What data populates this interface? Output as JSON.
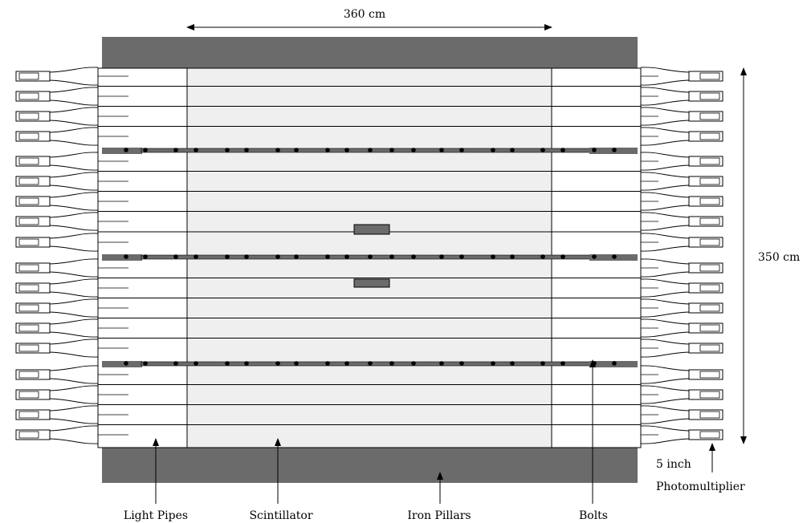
{
  "labels": {
    "width_dim": "360 cm",
    "height_dim": "350 cm",
    "light_pipes": "Light Pipes",
    "scintillator": "Scintillator",
    "iron_pillars": "Iron Pillars",
    "bolts": "Bolts",
    "pmt_size": "5 inch",
    "pmt": "Photomultiplier"
  },
  "colors": {
    "iron": "#6b6b6b",
    "scintillator": "#efefef",
    "line": "#000000",
    "pipe_fill": "#ffffff"
  }
}
